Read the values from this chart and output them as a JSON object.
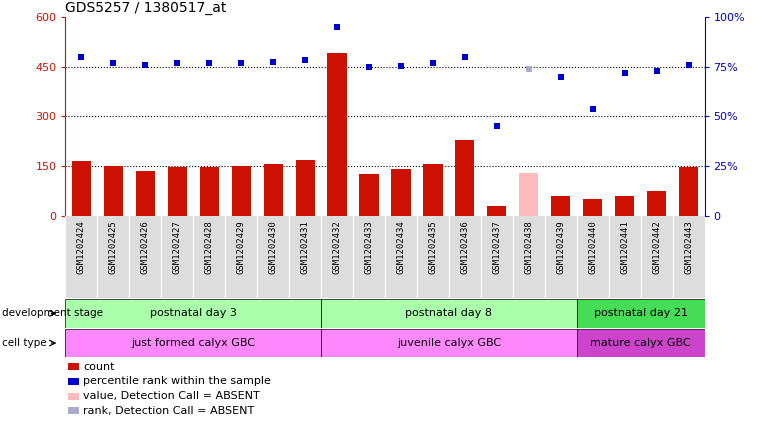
{
  "title": "GDS5257 / 1380517_at",
  "samples": [
    "GSM1202424",
    "GSM1202425",
    "GSM1202426",
    "GSM1202427",
    "GSM1202428",
    "GSM1202429",
    "GSM1202430",
    "GSM1202431",
    "GSM1202432",
    "GSM1202433",
    "GSM1202434",
    "GSM1202435",
    "GSM1202436",
    "GSM1202437",
    "GSM1202438",
    "GSM1202439",
    "GSM1202440",
    "GSM1202441",
    "GSM1202442",
    "GSM1202443"
  ],
  "bar_values": [
    165,
    150,
    135,
    148,
    148,
    150,
    155,
    168,
    490,
    125,
    140,
    155,
    230,
    30,
    130,
    60,
    50,
    60,
    75,
    148
  ],
  "bar_absent": [
    false,
    false,
    false,
    false,
    false,
    false,
    false,
    false,
    false,
    false,
    false,
    false,
    false,
    false,
    true,
    false,
    false,
    false,
    false,
    false
  ],
  "dot_values": [
    480,
    460,
    455,
    462,
    462,
    460,
    463,
    470,
    570,
    450,
    453,
    462,
    480,
    270,
    442,
    420,
    323,
    430,
    438,
    455
  ],
  "dot_absent": [
    false,
    false,
    false,
    false,
    false,
    false,
    false,
    false,
    false,
    false,
    false,
    false,
    false,
    false,
    true,
    false,
    false,
    false,
    false,
    false
  ],
  "ylim": [
    0,
    600
  ],
  "yticks_left": [
    0,
    150,
    300,
    450,
    600
  ],
  "ytick_labels_left": [
    "0",
    "150",
    "300",
    "450",
    "600"
  ],
  "yticks_right": [
    0,
    150,
    300,
    450,
    600
  ],
  "ytick_labels_right": [
    "0",
    "25%",
    "50%",
    "75%",
    "100%"
  ],
  "hlines": [
    150,
    300,
    450
  ],
  "bar_color": "#cc1100",
  "bar_color_absent": "#ffbbbb",
  "dot_color": "#0000cc",
  "dot_color_absent": "#aaaacc",
  "groups": [
    {
      "label": "postnatal day 3",
      "start": 0,
      "end": 8,
      "color": "#aaffaa"
    },
    {
      "label": "postnatal day 8",
      "start": 8,
      "end": 16,
      "color": "#aaffaa"
    },
    {
      "label": "postnatal day 21",
      "start": 16,
      "end": 20,
      "color": "#44dd55"
    }
  ],
  "cell_groups": [
    {
      "label": "just formed calyx GBC",
      "start": 0,
      "end": 8,
      "color": "#ff88ff"
    },
    {
      "label": "juvenile calyx GBC",
      "start": 8,
      "end": 16,
      "color": "#ff88ff"
    },
    {
      "label": "mature calyx GBC",
      "start": 16,
      "end": 20,
      "color": "#cc44cc"
    }
  ],
  "legend": [
    {
      "label": "count",
      "color": "#cc1100"
    },
    {
      "label": "percentile rank within the sample",
      "color": "#0000cc"
    },
    {
      "label": "value, Detection Call = ABSENT",
      "color": "#ffbbbb"
    },
    {
      "label": "rank, Detection Call = ABSENT",
      "color": "#aaaacc"
    }
  ],
  "dev_label": "development stage",
  "cell_label": "cell type",
  "title_fontsize": 10,
  "tick_fontsize": 6.5,
  "row_fontsize": 8,
  "legend_fontsize": 8
}
